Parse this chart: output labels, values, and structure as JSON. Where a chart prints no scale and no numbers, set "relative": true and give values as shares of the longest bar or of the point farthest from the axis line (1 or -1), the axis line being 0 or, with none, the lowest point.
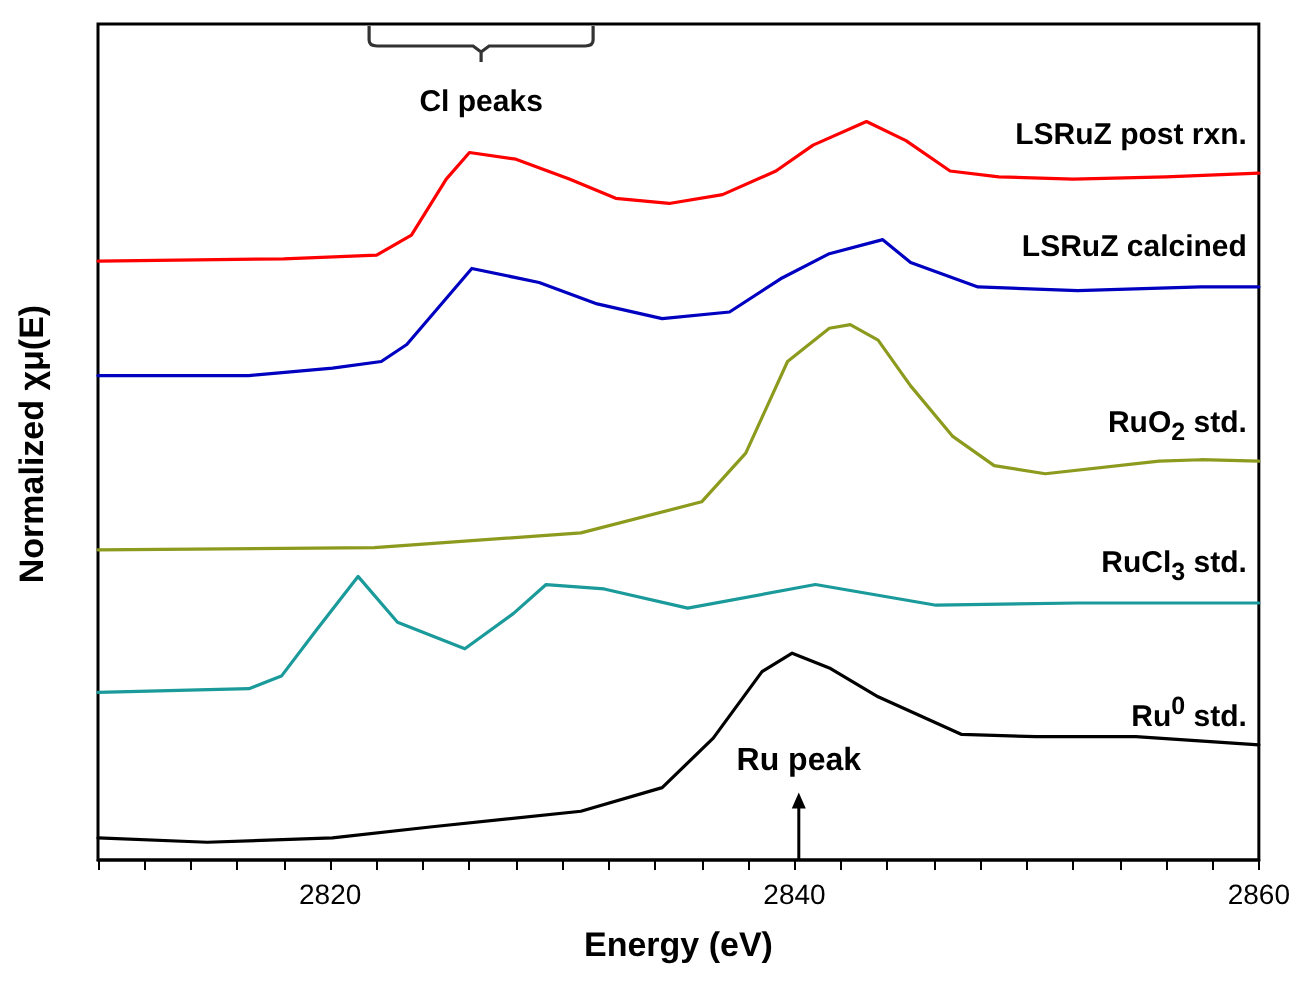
{
  "chart_data": {
    "type": "line",
    "relative": true,
    "xlabel": "Energy (eV)",
    "ylabel": "Normalized χμ(E)",
    "xlim": [
      2810,
      2860
    ],
    "xticks": [
      {
        "value": 2810,
        "label": null
      },
      {
        "value": 2812,
        "label": null
      },
      {
        "value": 2814,
        "label": null
      },
      {
        "value": 2816,
        "label": null
      },
      {
        "value": 2818,
        "label": null
      },
      2820,
      {
        "value": 2822,
        "label": null
      },
      {
        "value": 2824,
        "label": null
      },
      {
        "value": 2826,
        "label": null
      },
      {
        "value": 2828,
        "label": null
      },
      {
        "value": 2830,
        "label": null
      },
      {
        "value": 2832,
        "label": null
      },
      {
        "value": 2834,
        "label": null
      },
      {
        "value": 2836,
        "label": null
      },
      {
        "value": 2838,
        "label": null
      },
      2840,
      {
        "value": 2842,
        "label": null
      },
      {
        "value": 2844,
        "label": null
      },
      {
        "value": 2846,
        "label": null
      },
      {
        "value": 2848,
        "label": null
      },
      {
        "value": 2850,
        "label": null
      },
      {
        "value": 2852,
        "label": null
      },
      {
        "value": 2854,
        "label": null
      },
      {
        "value": 2856,
        "label": null
      },
      {
        "value": 2858,
        "label": null
      },
      2860
    ],
    "grid": false,
    "marker": "none",
    "line_style": "solid",
    "series": [
      {
        "name": "LSRuZ post rxn.",
        "color": "#ff0000",
        "x": [
          2810,
          2818,
          2822,
          2823.5,
          2825,
          2826,
          2828,
          2830.3,
          2832.3,
          2834.6,
          2836.9,
          2839.2,
          2840.8,
          2843.1,
          2844.8,
          2846.7,
          2848.8,
          2852,
          2856,
          2860
        ],
        "values": [
          0.811,
          0.814,
          0.819,
          0.846,
          0.922,
          0.958,
          0.949,
          0.922,
          0.896,
          0.889,
          0.901,
          0.933,
          0.968,
          1,
          0.974,
          0.933,
          0.925,
          0.922,
          0.925,
          0.93
        ]
      },
      {
        "name": "LSRuZ calcined",
        "color": "#0000c0",
        "x": [
          2810,
          2816.5,
          2820.1,
          2822.2,
          2823.3,
          2826.1,
          2829,
          2831.5,
          2834.3,
          2837.2,
          2839.4,
          2841.5,
          2843.8,
          2845,
          2847.9,
          2852.2,
          2857.5,
          2860
        ],
        "values": [
          0.656,
          0.656,
          0.666,
          0.675,
          0.698,
          0.801,
          0.782,
          0.753,
          0.733,
          0.742,
          0.787,
          0.821,
          0.84,
          0.809,
          0.776,
          0.771,
          0.776,
          0.776
        ]
      },
      {
        "name": "RuO$_{2}$ std.",
        "color": "#8c9a1e",
        "x": [
          2810,
          2821.9,
          2830.8,
          2836,
          2837.9,
          2839.7,
          2841.5,
          2842.4,
          2843.6,
          2845,
          2846.8,
          2848.6,
          2850.8,
          2855.7,
          2857.5,
          2860
        ],
        "values": [
          0.42,
          0.423,
          0.443,
          0.485,
          0.551,
          0.675,
          0.72,
          0.725,
          0.704,
          0.642,
          0.574,
          0.534,
          0.523,
          0.54,
          0.542,
          0.54
        ]
      },
      {
        "name": "RuCl$_{3}$ std.",
        "color": "#1a9a9a",
        "x": [
          2810,
          2816.5,
          2817.9,
          2819.4,
          2821.2,
          2822.9,
          2825.8,
          2827.9,
          2829.3,
          2831.8,
          2835.4,
          2840.9,
          2846.1,
          2852.2,
          2860
        ],
        "values": [
          0.227,
          0.232,
          0.249,
          0.311,
          0.384,
          0.322,
          0.286,
          0.334,
          0.373,
          0.367,
          0.341,
          0.373,
          0.345,
          0.348,
          0.348
        ]
      },
      {
        "name": "Ru$^{0}$ std.",
        "color": "#000000",
        "x": [
          2810,
          2814.7,
          2820.1,
          2824.4,
          2830.8,
          2834.3,
          2836.5,
          2838.6,
          2839.9,
          2841.5,
          2843.6,
          2847.2,
          2850.4,
          2854.7,
          2860
        ],
        "values": [
          0.03,
          0.024,
          0.03,
          0.045,
          0.066,
          0.098,
          0.165,
          0.255,
          0.28,
          0.26,
          0.221,
          0.17,
          0.167,
          0.167,
          0.156
        ]
      }
    ],
    "annotations": [
      "Cl peaks",
      "Ru peak"
    ]
  }
}
